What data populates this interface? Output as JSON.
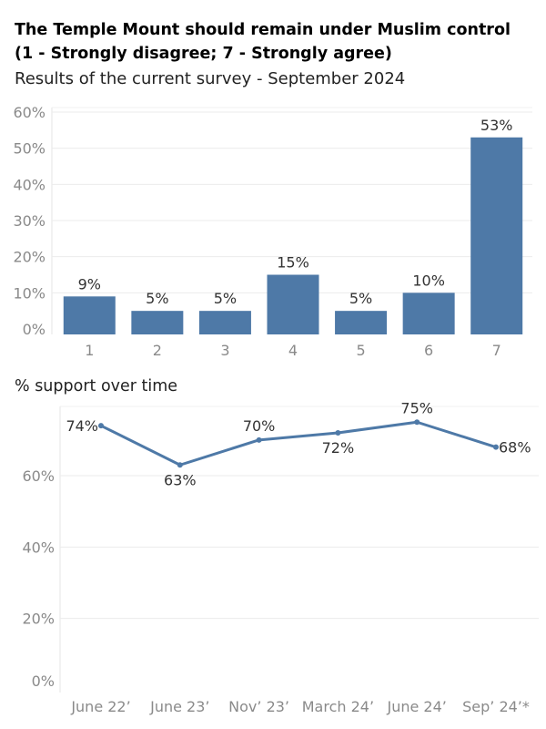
{
  "header": {
    "title": "The Temple Mount should remain under Muslim control (1 - Strongly disagree; 7 - Strongly agree)",
    "subtitle": "Results of the current survey - September 2024"
  },
  "colors": {
    "bar": "#4e79a7",
    "line": "#4e79a7",
    "grid": "#ebebeb",
    "tick": "#8a8a8a"
  },
  "chart_data": [
    {
      "type": "bar",
      "title": "The Temple Mount should remain under Muslim control (1 - Strongly disagree; 7 - Strongly agree)",
      "subtitle": "Results of the current survey - September 2024",
      "categories": [
        "1",
        "2",
        "3",
        "4",
        "5",
        "6",
        "7"
      ],
      "values": [
        9,
        5,
        5,
        15,
        5,
        10,
        53
      ],
      "value_labels": [
        "9%",
        "5%",
        "5%",
        "15%",
        "5%",
        "10%",
        "53%"
      ],
      "yticks": [
        "0%",
        "10%",
        "20%",
        "30%",
        "40%",
        "50%",
        "60%"
      ],
      "ytick_values": [
        0,
        10,
        20,
        30,
        40,
        50,
        60
      ],
      "ylim": [
        0,
        60
      ],
      "grid": true
    },
    {
      "type": "line",
      "title": "% support over time",
      "categories": [
        "June 22’",
        "June 23’",
        "Nov’ 23’",
        "March 24’",
        "June 24’",
        "Sep’ 24’*"
      ],
      "values": [
        74,
        63,
        70,
        72,
        75,
        68
      ],
      "value_labels": [
        "74%",
        "63%",
        "70%",
        "72%",
        "75%",
        "68%"
      ],
      "yticks": [
        "0%",
        "20%",
        "40%",
        "60%"
      ],
      "ytick_values": [
        0,
        20,
        40,
        60
      ],
      "ylim": [
        0,
        80
      ],
      "grid": true
    }
  ]
}
